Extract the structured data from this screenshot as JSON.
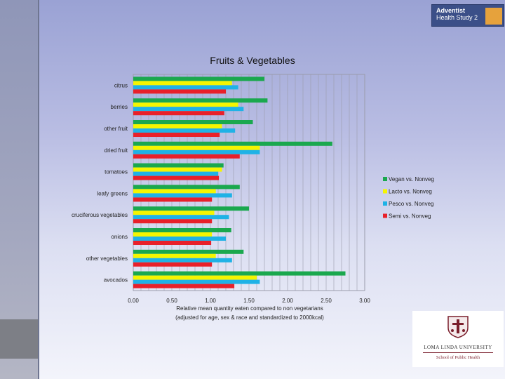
{
  "logos": {
    "top": {
      "line1": "Adventist",
      "line2": "Health Study",
      "badge": "2"
    },
    "bottom": {
      "name": "LOMA LINDA UNIVERSITY",
      "school": "School of Public Health"
    }
  },
  "chart_data": {
    "type": "bar",
    "orientation": "horizontal",
    "title": "Fruits & Vegetables",
    "xlabel": "Relative mean quantity eaten compared to non vegetarians",
    "xlabel_line2": "(adjusted for age, sex & race and standardized to 2000kcal)",
    "ylabel": "",
    "xlim": [
      0,
      3.0
    ],
    "ticks": [
      "0.00",
      "0.50",
      "1.00",
      "1.50",
      "2.00",
      "2.50",
      "3.00"
    ],
    "grid": true,
    "legend_position": "right",
    "categories": [
      "citrus",
      "berries",
      "other fruit",
      "dried fruit",
      "tomatoes",
      "leafy greens",
      "cruciferous vegetables",
      "onions",
      "other vegetables",
      "avocados"
    ],
    "series": [
      {
        "name": "Vegan vs. Nonveg",
        "color": "#1aa84e",
        "values": [
          1.7,
          1.74,
          1.55,
          2.58,
          1.17,
          1.38,
          1.5,
          1.27,
          1.43,
          2.75
        ]
      },
      {
        "name": "Lacto vs. Nonveg",
        "color": "#f5f500",
        "values": [
          1.28,
          1.36,
          1.15,
          1.64,
          1.15,
          1.07,
          1.05,
          1.02,
          1.07,
          1.6
        ]
      },
      {
        "name": "Pesco vs. Nonveg",
        "color": "#1fb2e6",
        "values": [
          1.36,
          1.43,
          1.32,
          1.64,
          1.1,
          1.28,
          1.24,
          1.2,
          1.28,
          1.64
        ]
      },
      {
        "name": "Semi vs. Nonveg",
        "color": "#e8202a",
        "values": [
          1.2,
          1.18,
          1.12,
          1.38,
          1.11,
          1.02,
          1.02,
          1.01,
          1.02,
          1.31
        ]
      }
    ]
  }
}
